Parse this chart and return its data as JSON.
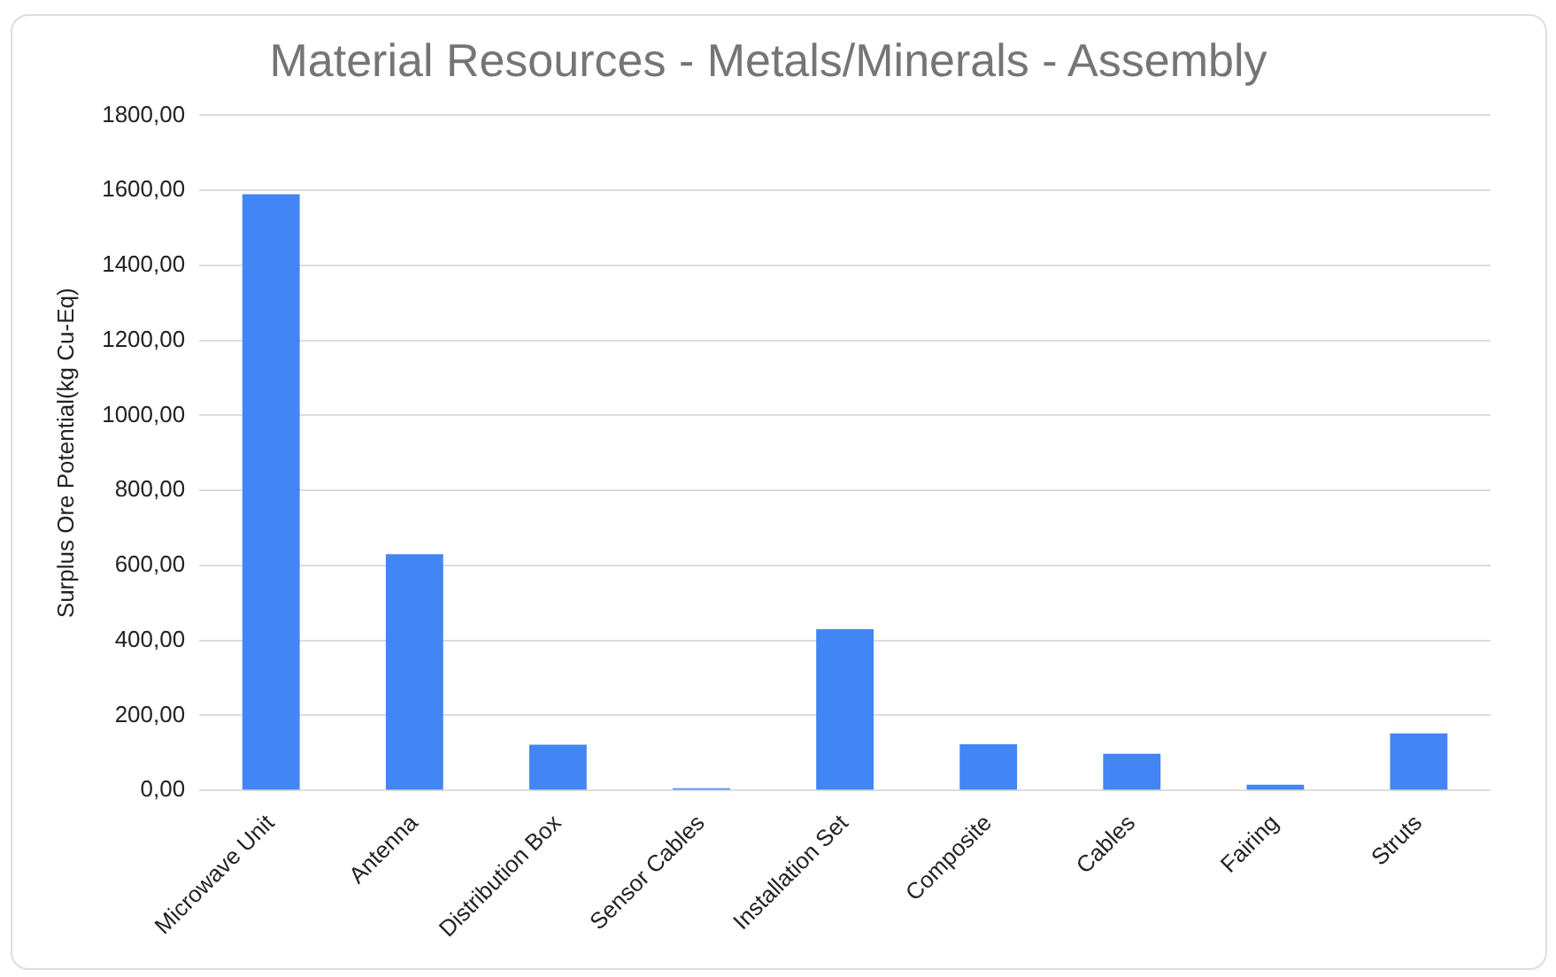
{
  "chart_data": {
    "type": "bar",
    "title": "Material Resources - Metals/Minerals - Assembly",
    "ylabel": "Surplus Ore Potential(kg Cu-Eq)",
    "categories": [
      "Microwave Unit",
      "Antenna",
      "Distribution Box",
      "Sensor Cables",
      "Installation Set",
      "Composite",
      "Cables",
      "Fairing",
      "Struts"
    ],
    "values": [
      1590,
      630,
      122,
      6,
      430,
      123,
      98,
      15,
      152
    ],
    "color": "#4285f4",
    "ylim": [
      0,
      1800
    ],
    "yticks": [
      {
        "value": 0,
        "label": "0,00"
      },
      {
        "value": 200,
        "label": "200,00"
      },
      {
        "value": 400,
        "label": "400,00"
      },
      {
        "value": 600,
        "label": "600,00"
      },
      {
        "value": 800,
        "label": "800,00"
      },
      {
        "value": 1000,
        "label": "1000,00"
      },
      {
        "value": 1200,
        "label": "1200,00"
      },
      {
        "value": 1400,
        "label": "1400,00"
      },
      {
        "value": 1600,
        "label": "1600,00"
      },
      {
        "value": 1800,
        "label": "1800,00"
      }
    ],
    "grid": "y",
    "legend": false
  }
}
